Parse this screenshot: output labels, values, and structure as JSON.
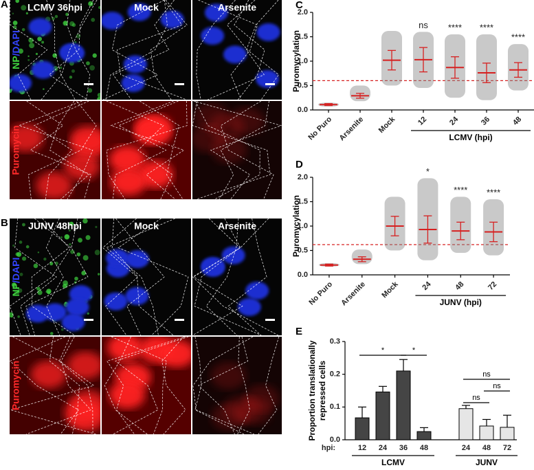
{
  "panels": [
    {
      "letter": "A",
      "columns": [
        "LCMV 36hpi",
        "Mock",
        "Arsenite"
      ],
      "stain_top": [
        "NP",
        "/DAPI"
      ],
      "stain_bottom": "Puromycin"
    },
    {
      "letter": "B",
      "columns": [
        "JUNV 48hpi",
        "Mock",
        "Arsenite"
      ],
      "stain_top": [
        "NP",
        "/DAPI"
      ],
      "stain_bottom": "Puromycin"
    }
  ],
  "chart_data": [
    {
      "type": "strip",
      "letter": "C",
      "ylabel": "Puromycylation",
      "categories": [
        "No Puro",
        "Arsenite",
        "Mock",
        "12",
        "24",
        "36",
        "48"
      ],
      "means": [
        0.11,
        0.29,
        1.02,
        1.03,
        0.87,
        0.76,
        0.82
      ],
      "sd": [
        0.02,
        0.05,
        0.2,
        0.25,
        0.22,
        0.2,
        0.15
      ],
      "ranges": [
        [
          0.07,
          0.15
        ],
        [
          0.18,
          0.5
        ],
        [
          0.5,
          1.62
        ],
        [
          0.45,
          1.6
        ],
        [
          0.25,
          1.55
        ],
        [
          0.2,
          1.55
        ],
        [
          0.4,
          1.35
        ]
      ],
      "significance": [
        null,
        null,
        null,
        "ns",
        "****",
        "****",
        "****"
      ],
      "group_label": "LCMV (hpi)",
      "threshold": 0.6,
      "ylim": [
        0,
        2
      ],
      "yticks": [
        {
          "value": 0,
          "label": "0.0"
        },
        0.5,
        {
          "value": 1,
          "label": "1.0"
        },
        1.5,
        {
          "value": 2,
          "label": "2.0"
        }
      ],
      "color": "#d62020",
      "dot_color": "#888888"
    },
    {
      "type": "strip",
      "letter": "D",
      "ylabel": "Puromycylation",
      "categories": [
        "No Puro",
        "Arsenite",
        "Mock",
        "24",
        "48",
        "72"
      ],
      "means": [
        0.2,
        0.32,
        1.0,
        0.93,
        0.9,
        0.88
      ],
      "sd": [
        0.02,
        0.05,
        0.2,
        0.28,
        0.18,
        0.2
      ],
      "ranges": [
        [
          0.17,
          0.24
        ],
        [
          0.22,
          0.52
        ],
        [
          0.5,
          1.6
        ],
        [
          0.3,
          1.98
        ],
        [
          0.45,
          1.6
        ],
        [
          0.4,
          1.55
        ]
      ],
      "significance": [
        null,
        null,
        null,
        "*",
        "****",
        "****"
      ],
      "group_label": "JUNV (hpi)",
      "threshold": 0.62,
      "ylim": [
        0,
        2
      ],
      "yticks": [
        {
          "value": 0,
          "label": "0.0"
        },
        0.5,
        {
          "value": 1,
          "label": "1.0"
        },
        1.5,
        {
          "value": 2,
          "label": "2.0"
        }
      ],
      "color": "#d62020",
      "dot_color": "#888888"
    },
    {
      "type": "bar",
      "letter": "E",
      "ylabel": [
        "Proportion translationally",
        "repressed cells"
      ],
      "x_prefix": "hpi:",
      "series": [
        {
          "name": "LCMV",
          "categories": [
            "12",
            "24",
            "36",
            "48"
          ],
          "values": [
            0.067,
            0.146,
            0.21,
            0.025
          ],
          "errors": [
            0.033,
            0.017,
            0.035,
            0.012
          ],
          "color": "#454545"
        },
        {
          "name": "JUNV",
          "categories": [
            "24",
            "48",
            "72"
          ],
          "values": [
            0.095,
            0.042,
            0.038
          ],
          "errors": [
            0.01,
            0.02,
            0.037
          ],
          "color": "#e6e6e6"
        }
      ],
      "comparisons": [
        "*",
        "*",
        "ns",
        "ns",
        "ns"
      ],
      "ylim": [
        0,
        0.3
      ],
      "yticks": [
        {
          "value": 0,
          "label": "0.0"
        },
        0.1,
        0.2,
        0.3
      ]
    }
  ]
}
